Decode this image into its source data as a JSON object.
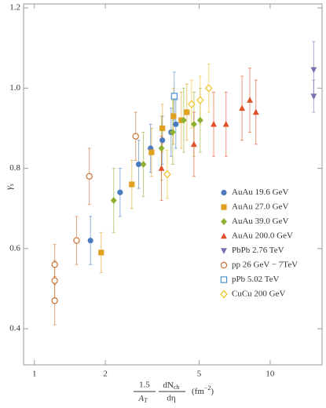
{
  "chart_data": {
    "type": "scatter",
    "x_label": {
      "factor": "1.5",
      "area": "A",
      "area_sub": "T",
      "numerator": "dN",
      "numerator_sub": "ch",
      "denominator": "dη",
      "unit": "(fm",
      "unit_sup": "−2",
      "unit_close": ")"
    },
    "y_label": {
      "symbol": "γ",
      "subscript": "s"
    },
    "log_x": true,
    "xlim": [
      0.9,
      16.6
    ],
    "ylim": [
      0.31,
      1.21
    ],
    "xticks": [
      1,
      2,
      5,
      10
    ],
    "yticks": [
      0.4,
      0.6,
      0.8,
      {
        "value": 1,
        "label": "1.0"
      },
      1.2
    ],
    "legend": "lower right",
    "series": [
      {
        "name": "AuAu 19.6 GeV",
        "color": "#4a7bbf",
        "marker": "circle",
        "filled": true,
        "x": [
          1.73,
          2.31,
          2.77,
          3.11,
          3.49,
          3.8,
          3.98
        ],
        "values": [
          0.62,
          0.74,
          0.81,
          0.85,
          0.87,
          0.89,
          0.91
        ],
        "errors": [
          0.06,
          0.06,
          0.06,
          0.06,
          0.06,
          0.06,
          0.06
        ]
      },
      {
        "name": "AuAu 27.0 GeV",
        "color": "#e0a020",
        "marker": "square",
        "filled": true,
        "x": [
          1.92,
          2.59,
          3.14,
          3.49,
          3.89,
          4.2,
          4.43
        ],
        "values": [
          0.59,
          0.76,
          0.84,
          0.9,
          0.93,
          0.92,
          0.94
        ],
        "errors": [
          0.05,
          0.06,
          0.06,
          0.06,
          0.07,
          0.07,
          0.07
        ]
      },
      {
        "name": "AuAu 39.0 GeV",
        "color": "#8db030",
        "marker": "diamond",
        "filled": true,
        "x": [
          2.17,
          2.9,
          3.46,
          3.86,
          4.3,
          4.75,
          5.05
        ],
        "values": [
          0.72,
          0.81,
          0.85,
          0.89,
          0.92,
          0.91,
          0.92
        ],
        "errors": [
          0.08,
          0.08,
          0.08,
          0.08,
          0.08,
          0.08,
          0.08
        ]
      },
      {
        "name": "AuAu 200.0 GeV",
        "color": "#e0502a",
        "marker": "triangle-up",
        "filled": true,
        "x": [
          3.46,
          4.75,
          5.76,
          6.5,
          7.6,
          8.2,
          8.7
        ],
        "values": [
          0.8,
          0.86,
          0.91,
          0.91,
          0.95,
          0.97,
          0.94
        ],
        "errors": [
          0.08,
          0.08,
          0.08,
          0.08,
          0.08,
          0.08,
          0.08
        ]
      },
      {
        "name": "PbPb 2.76 TeV",
        "color": "#7a6fb0",
        "marker": "triangle-down",
        "filled": true,
        "x": [
          15.3,
          15.3
        ],
        "values": [
          1.046,
          0.98
        ],
        "errors": [
          0.07,
          0.04
        ]
      },
      {
        "name": "pp 26 GeV − 7TeV",
        "color": "#c87030",
        "marker": "circle",
        "filled": false,
        "x": [
          1.22,
          1.22,
          1.22,
          1.51,
          1.71,
          2.69
        ],
        "values": [
          0.56,
          0.52,
          0.47,
          0.62,
          0.78,
          0.88
        ],
        "errors": [
          0.05,
          0.05,
          0.06,
          0.06,
          0.07,
          0.06
        ]
      },
      {
        "name": "pPb 5.02 TeV",
        "color": "#4a90d0",
        "marker": "square",
        "filled": false,
        "x": [
          3.92
        ],
        "values": [
          0.98
        ],
        "errors": [
          0.06
        ]
      },
      {
        "name": "CuCu 200 GeV",
        "color": "#f0c020",
        "marker": "diamond",
        "filled": false,
        "x": [
          3.66,
          4.64,
          5.05,
          5.49
        ],
        "values": [
          0.785,
          0.96,
          0.97,
          1.0
        ],
        "errors": [
          0.06,
          0.06,
          0.06,
          0.06
        ]
      }
    ]
  }
}
